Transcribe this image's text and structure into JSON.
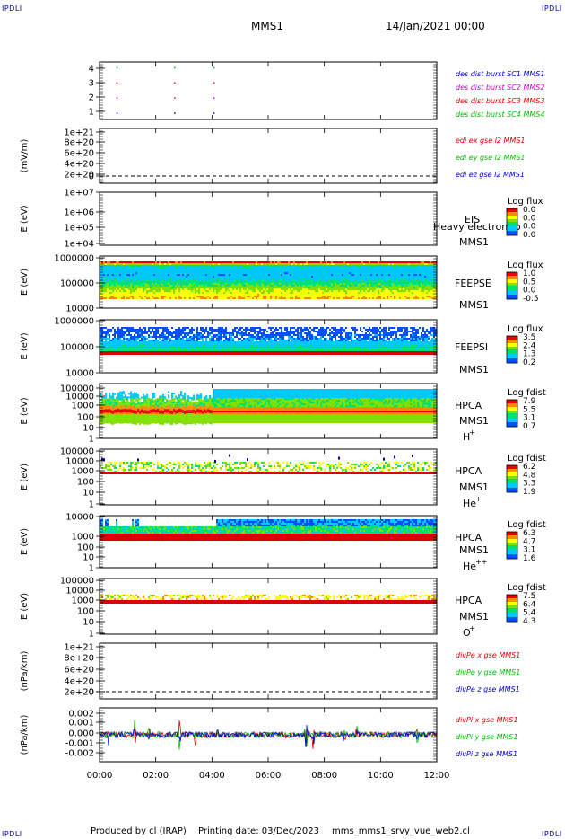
{
  "header": {
    "corner_label": "IPDLI",
    "spacecraft": "MMS1",
    "date": "14/Jan/2021 00:00"
  },
  "footer": {
    "produced_by": "Produced by cl (IRAP)",
    "printing_date": "Printing date: 03/Dec/2023",
    "script": "mms_mms1_srvy_vue_web2.cl"
  },
  "colors": {
    "red": "#dd0000",
    "magenta": "#cc00cc",
    "green": "#00bb00",
    "blue": "#0000cc"
  },
  "time_axis": {
    "ticks": [
      "00:00",
      "02:00",
      "04:00",
      "06:00",
      "08:00",
      "10:00",
      "12:00"
    ],
    "range_hours": [
      0,
      12
    ]
  },
  "chart_data": [
    {
      "type": "scatter",
      "id": "burst",
      "yticks": [
        "4",
        "3",
        "2",
        "1"
      ],
      "ylim": [
        0.6,
        4.4
      ],
      "legend": [
        {
          "text": "des dist burst SC1 MMS1",
          "color": "#0000cc"
        },
        {
          "text": "des dist burst SC2 MMS2",
          "color": "#cc00cc"
        },
        {
          "text": "des dist burst SC3 MMS3",
          "color": "#dd0000"
        },
        {
          "text": "des dist burst SC4 MMS4",
          "color": "#00bb00"
        }
      ],
      "series": [
        {
          "level": 4,
          "times": [
            0.6,
            2.65,
            4.05
          ],
          "color": "#00bb00"
        },
        {
          "level": 3,
          "times": [
            0.6,
            2.65,
            4.05
          ],
          "color": "#dd0000"
        },
        {
          "level": 2,
          "times": [
            0.6,
            2.65,
            4.05
          ],
          "color": "#cc00cc"
        },
        {
          "level": 1,
          "times": [
            0.6,
            2.65,
            4.05
          ],
          "color": "#0000cc"
        }
      ]
    },
    {
      "type": "line",
      "id": "edi",
      "ylabel": "(mV/m)",
      "yticks": [
        "1e+21",
        "8e+20",
        "6e+20",
        "4e+20",
        "2e+20",
        "0"
      ],
      "legend": [
        {
          "text": "edi ex gse l2 MMS1",
          "color": "#dd0000"
        },
        {
          "text": "edi ey gse l2 MMS1",
          "color": "#00bb00"
        },
        {
          "text": "edi ez gse l2 MMS1",
          "color": "#0000cc"
        }
      ]
    },
    {
      "type": "heatmap",
      "id": "eis",
      "ylabel": "E (eV)",
      "yticks": [
        "1e+07",
        "1e+06",
        "1e+05",
        "1e+04"
      ],
      "label_top": "EIS",
      "label_bottom": "MMS1",
      "overlay": "Heavy electron to",
      "colorbar": {
        "title": "Log flux",
        "ticks": [
          "0.0",
          "0.0",
          "0.0",
          "0.0"
        ]
      }
    },
    {
      "type": "heatmap",
      "id": "feepse",
      "ylabel": "E (eV)",
      "yticks": [
        "1000000",
        "100000",
        "10000"
      ],
      "label_top": "FEEPSE",
      "label_bottom": "MMS1",
      "colorbar": {
        "title": "Log flux",
        "ticks": [
          "1.0",
          "0.5",
          "0.0",
          "-0.5"
        ]
      }
    },
    {
      "type": "heatmap",
      "id": "feepsi",
      "ylabel": "E (eV)",
      "yticks": [
        "1000000",
        "100000",
        "10000"
      ],
      "label_top": "FEEPSI",
      "label_bottom": "MMS1",
      "colorbar": {
        "title": "Log flux",
        "ticks": [
          "3.5",
          "2.4",
          "1.3",
          "0.2"
        ]
      }
    },
    {
      "type": "heatmap",
      "id": "hpca-h",
      "ylabel": "E (eV)",
      "yticks": [
        "100000",
        "10000",
        "1000",
        "100",
        "10",
        "1"
      ],
      "label_top": "HPCA",
      "label_bottom": "MMS1",
      "species": "H",
      "charge": "+",
      "colorbar": {
        "title": "Log fdist",
        "ticks": [
          "7.9",
          "5.5",
          "3.1",
          "0.7"
        ]
      }
    },
    {
      "type": "heatmap",
      "id": "hpca-he",
      "ylabel": "E (eV)",
      "yticks": [
        "100000",
        "10000",
        "1000",
        "100",
        "10",
        "1"
      ],
      "label_top": "HPCA",
      "label_bottom": "MMS1",
      "species": "He",
      "charge": "+",
      "colorbar": {
        "title": "Log fdist",
        "ticks": [
          "6.2",
          "4.8",
          "3.3",
          "1.9"
        ]
      }
    },
    {
      "type": "heatmap",
      "id": "hpca-he2",
      "ylabel": "E (eV)",
      "yticks": [
        "10000",
        "1000",
        "100",
        "10",
        "1"
      ],
      "label_top": "HPCA",
      "label_bottom": "MMS1",
      "species": "He",
      "charge": "++",
      "colorbar": {
        "title": "Log fdist",
        "ticks": [
          "6.3",
          "4.7",
          "3.1",
          "1.6"
        ]
      }
    },
    {
      "type": "heatmap",
      "id": "hpca-o",
      "ylabel": "E (eV)",
      "yticks": [
        "100000",
        "10000",
        "1000",
        "100",
        "10",
        "1"
      ],
      "label_top": "HPCA",
      "label_bottom": "MMS1",
      "species": "O",
      "charge": "+",
      "colorbar": {
        "title": "Log fdist",
        "ticks": [
          "7.5",
          "6.4",
          "5.4",
          "4.3"
        ]
      }
    },
    {
      "type": "line",
      "id": "divpe",
      "ylabel": "(nPa/km)",
      "yticks": [
        "1e+21",
        "8e+20",
        "6e+20",
        "4e+20",
        "2e+20",
        "0"
      ],
      "legend": [
        {
          "text": "divPe x gse MMS1",
          "color": "#dd0000"
        },
        {
          "text": "divPe y gse MMS1",
          "color": "#00bb00"
        },
        {
          "text": "divPe z gse MMS1",
          "color": "#0000cc"
        }
      ]
    },
    {
      "type": "line",
      "id": "divpi",
      "ylabel": "(nPa/km)",
      "yticks": [
        "0.002",
        "0.001",
        "0.000",
        "-0.001",
        "-0.002"
      ],
      "ylim": [
        -0.0027,
        0.0027
      ],
      "legend": [
        {
          "text": "divPi x gse MMS1",
          "color": "#dd0000"
        },
        {
          "text": "divPi y gse MMS1",
          "color": "#00bb00"
        },
        {
          "text": "divPi z gse MMS1",
          "color": "#0000cc"
        }
      ],
      "spikes": [
        {
          "t": 0.3,
          "amp": 0.0012
        },
        {
          "t": 1.25,
          "amp": 0.0018
        },
        {
          "t": 1.75,
          "amp": 0.0015
        },
        {
          "t": 2.85,
          "amp": 0.0023
        },
        {
          "t": 3.4,
          "amp": 0.0012
        },
        {
          "t": 4.2,
          "amp": 0.001
        },
        {
          "t": 7.35,
          "amp": 0.0021
        },
        {
          "t": 7.6,
          "amp": 0.0017
        },
        {
          "t": 8.7,
          "amp": 0.0012
        },
        {
          "t": 9.15,
          "amp": 0.0011
        },
        {
          "t": 11.3,
          "amp": 0.0008
        }
      ]
    }
  ]
}
